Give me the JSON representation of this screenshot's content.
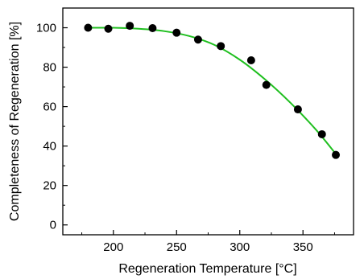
{
  "chart_data": {
    "type": "scatter",
    "title": "",
    "xlabel": "Regeneration Temperature [°C]",
    "ylabel": "Completeness of Regeneration [%]",
    "xlim": [
      160,
      390
    ],
    "ylim": [
      -5,
      110
    ],
    "xticks": [
      200,
      250,
      300,
      350
    ],
    "yticks": [
      0,
      20,
      40,
      60,
      80,
      100
    ],
    "grid": false,
    "legend": "none",
    "series": [
      {
        "kind": "scatter",
        "color": "#000000",
        "x": [
          180,
          196,
          213,
          231,
          250,
          267,
          285,
          309,
          321,
          346,
          365,
          376
        ],
        "y": [
          100,
          99.5,
          101,
          99.8,
          97.5,
          94,
          90.7,
          83.5,
          71,
          58.6,
          46,
          35.5
        ]
      },
      {
        "kind": "fit-line",
        "color": "#1fbf1f",
        "x": [
          180,
          200,
          220,
          240,
          260,
          280,
          300,
          320,
          340,
          360,
          376
        ],
        "y": [
          100,
          100,
          99.5,
          98.3,
          95.8,
          91.3,
          83.8,
          73.8,
          62,
          48.5,
          36
        ]
      }
    ]
  }
}
